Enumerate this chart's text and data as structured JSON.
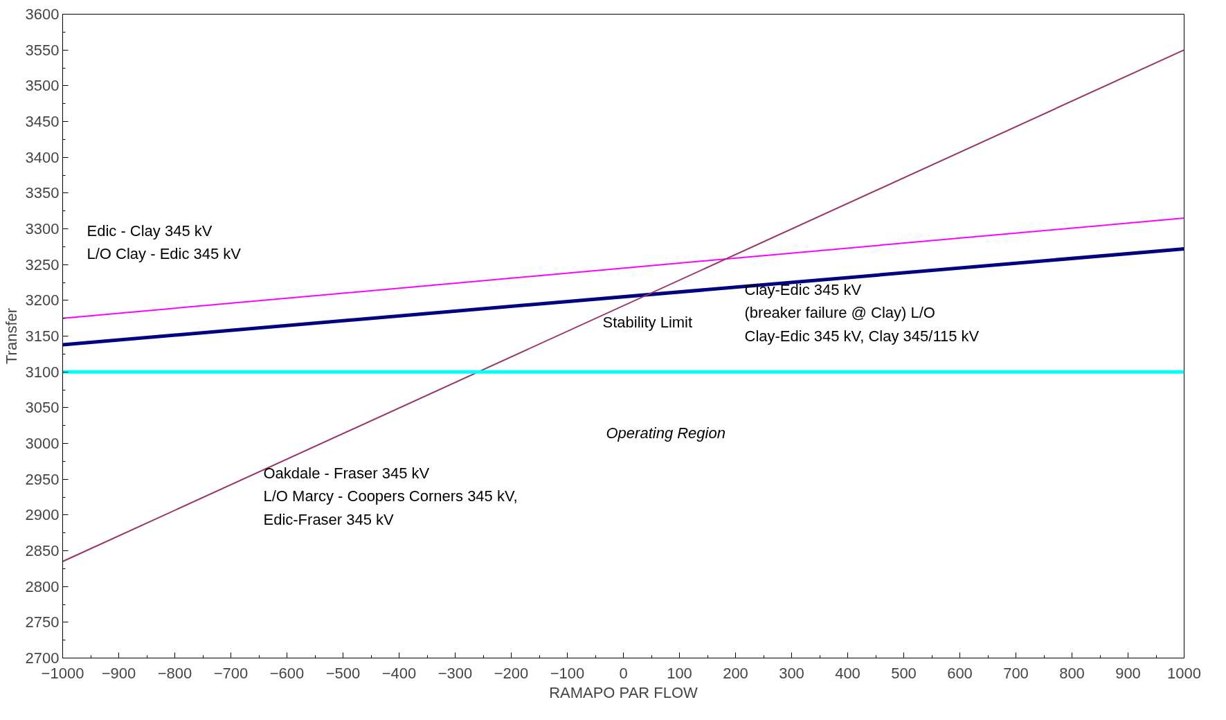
{
  "chart_data": {
    "type": "line",
    "xlabel": "RAMAPO PAR FLOW",
    "ylabel": "Transfer",
    "x": [
      -1000,
      1000
    ],
    "series": [
      {
        "color": "#ff00ff",
        "values": [
          3175,
          3315
        ]
      },
      {
        "color": "#000080",
        "values": [
          3138,
          3272
        ]
      },
      {
        "color": "#993366",
        "values": [
          2835,
          3550
        ]
      },
      {
        "color": "#00ffff",
        "values": [
          3100,
          3100
        ]
      }
    ],
    "xlim": [
      -1000,
      1000
    ],
    "ylim": [
      2700,
      3600
    ],
    "xticks": [
      -1000,
      -900,
      -800,
      -700,
      -600,
      -500,
      -400,
      -300,
      -200,
      -100,
      0,
      100,
      200,
      300,
      400,
      500,
      600,
      700,
      800,
      900,
      1000
    ],
    "yticks": [
      2700,
      2750,
      2800,
      2850,
      2900,
      2950,
      3000,
      3050,
      3100,
      3150,
      3200,
      3250,
      3300,
      3350,
      3400,
      3450,
      3500,
      3550,
      3600
    ],
    "grid": false,
    "marker": "none",
    "line_style": "solid",
    "annotations": [
      "Edic - Clay 345 kV\nL/O  Clay - Edic 345 kV",
      "Clay-Edic 345 kV\n(breaker failure @ Clay) L/O\nClay-Edic 345 kV,  Clay 345/115 kV",
      "Stability Limit",
      "Operating Region",
      "Oakdale - Fraser 345 kV\nL/O Marcy - Coopers Corners 345 kV,\nEdic-Fraser 345 kV"
    ]
  }
}
